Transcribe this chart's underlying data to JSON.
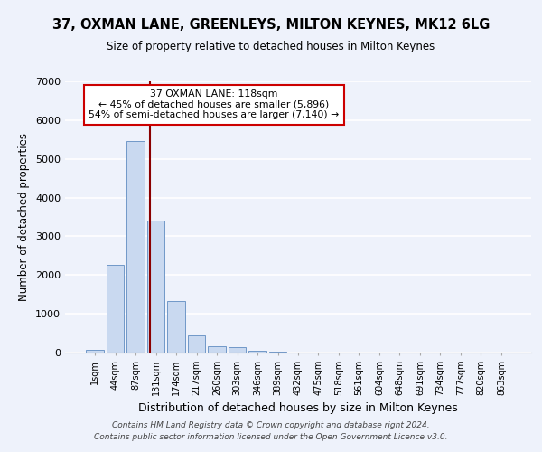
{
  "title": "37, OXMAN LANE, GREENLEYS, MILTON KEYNES, MK12 6LG",
  "subtitle": "Size of property relative to detached houses in Milton Keynes",
  "xlabel": "Distribution of detached houses by size in Milton Keynes",
  "ylabel": "Number of detached properties",
  "bar_labels": [
    "1sqm",
    "44sqm",
    "87sqm",
    "131sqm",
    "174sqm",
    "217sqm",
    "260sqm",
    "303sqm",
    "346sqm",
    "389sqm",
    "432sqm",
    "475sqm",
    "518sqm",
    "561sqm",
    "604sqm",
    "648sqm",
    "691sqm",
    "734sqm",
    "777sqm",
    "820sqm",
    "863sqm"
  ],
  "bar_heights": [
    70,
    2270,
    5450,
    3400,
    1340,
    450,
    165,
    130,
    55,
    20,
    0,
    0,
    0,
    0,
    0,
    0,
    0,
    0,
    0,
    0,
    0
  ],
  "bar_color": "#c9d9f0",
  "bar_edge_color": "#7098c8",
  "vline_x": 2.73,
  "vline_color": "#8b0000",
  "ylim": [
    0,
    7000
  ],
  "yticks": [
    0,
    1000,
    2000,
    3000,
    4000,
    5000,
    6000,
    7000
  ],
  "annotation_text": "37 OXMAN LANE: 118sqm\n← 45% of detached houses are smaller (5,896)\n54% of semi-detached houses are larger (7,140) →",
  "annotation_box_color": "#ffffff",
  "annotation_box_edge": "#cc0000",
  "footer_line1": "Contains HM Land Registry data © Crown copyright and database right 2024.",
  "footer_line2": "Contains public sector information licensed under the Open Government Licence v3.0.",
  "bg_color": "#eef2fb",
  "grid_color": "#ffffff",
  "title_fontsize": 10.5,
  "subtitle_fontsize": 8.5
}
